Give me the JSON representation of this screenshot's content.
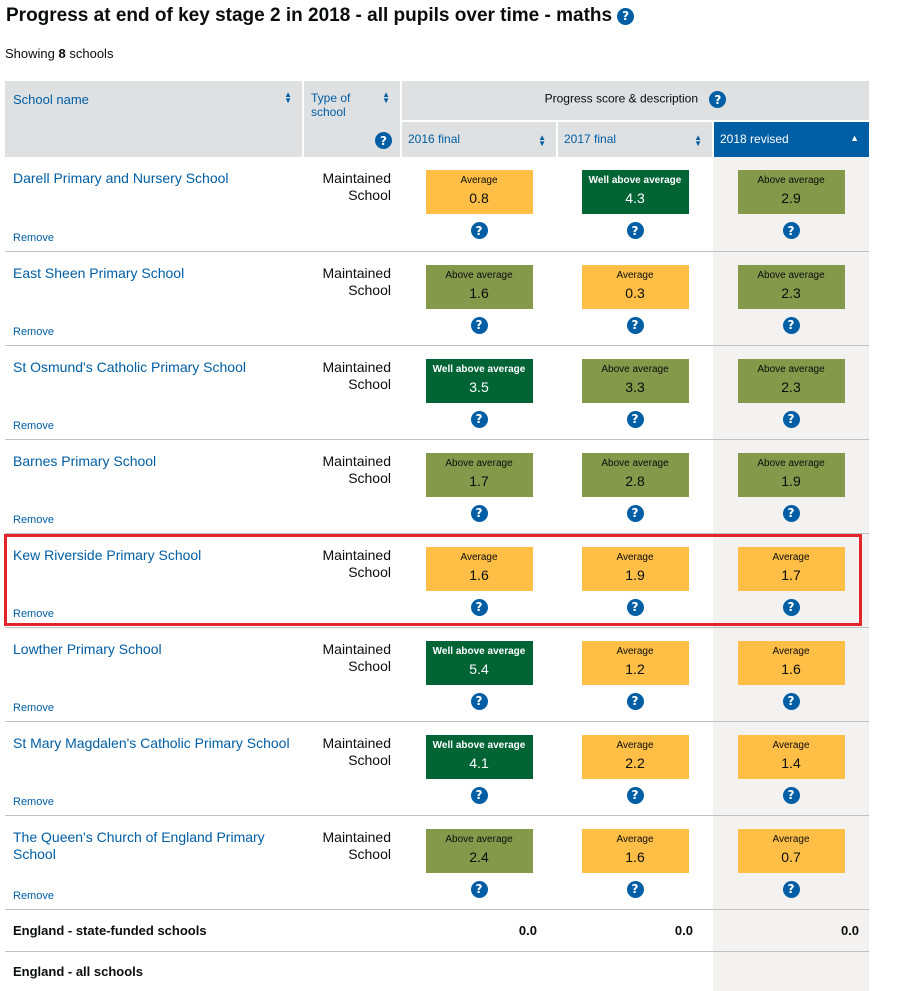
{
  "page": {
    "title": "Progress at end of key stage 2 in 2018 - all pupils over time - maths",
    "showing_prefix": "Showing",
    "showing_count": "8",
    "showing_suffix": "schools"
  },
  "icons": {
    "help": "?"
  },
  "colors": {
    "link": "#005ea5",
    "average": "#ffbf47",
    "above_average": "#85994b",
    "well_above_average": "#006435",
    "highlight": "#e3242b"
  },
  "table": {
    "headers": {
      "school_name": "School name",
      "type_of_school": "Type of school",
      "progress_group": "Progress score & description",
      "years": [
        "2016 final",
        "2017 final",
        "2018 revised"
      ],
      "sort_active_column": "2018 revised"
    },
    "remove_label": "Remove",
    "rows": [
      {
        "name": "Darell Primary and Nursery School",
        "type": "Maintained School",
        "scores": [
          {
            "desc": "Average",
            "value": "0.8",
            "level": "avg"
          },
          {
            "desc": "Well above average",
            "value": "4.3",
            "level": "well"
          },
          {
            "desc": "Above average",
            "value": "2.9",
            "level": "above"
          }
        ]
      },
      {
        "name": "East Sheen Primary School",
        "type": "Maintained School",
        "scores": [
          {
            "desc": "Above average",
            "value": "1.6",
            "level": "above"
          },
          {
            "desc": "Average",
            "value": "0.3",
            "level": "avg"
          },
          {
            "desc": "Above average",
            "value": "2.3",
            "level": "above"
          }
        ]
      },
      {
        "name": "St Osmund's Catholic Primary School",
        "type": "Maintained School",
        "scores": [
          {
            "desc": "Well above average",
            "value": "3.5",
            "level": "well"
          },
          {
            "desc": "Above average",
            "value": "3.3",
            "level": "above"
          },
          {
            "desc": "Above average",
            "value": "2.3",
            "level": "above"
          }
        ]
      },
      {
        "name": "Barnes Primary School",
        "type": "Maintained School",
        "scores": [
          {
            "desc": "Above average",
            "value": "1.7",
            "level": "above"
          },
          {
            "desc": "Above average",
            "value": "2.8",
            "level": "above"
          },
          {
            "desc": "Above average",
            "value": "1.9",
            "level": "above"
          }
        ]
      },
      {
        "name": "Kew Riverside Primary School",
        "type": "Maintained School",
        "highlighted": true,
        "scores": [
          {
            "desc": "Average",
            "value": "1.6",
            "level": "avg"
          },
          {
            "desc": "Average",
            "value": "1.9",
            "level": "avg"
          },
          {
            "desc": "Average",
            "value": "1.7",
            "level": "avg"
          }
        ]
      },
      {
        "name": "Lowther Primary School",
        "type": "Maintained School",
        "scores": [
          {
            "desc": "Well above average",
            "value": "5.4",
            "level": "well"
          },
          {
            "desc": "Average",
            "value": "1.2",
            "level": "avg"
          },
          {
            "desc": "Average",
            "value": "1.6",
            "level": "avg"
          }
        ]
      },
      {
        "name": "St Mary Magdalen's Catholic Primary School",
        "type": "Maintained School",
        "scores": [
          {
            "desc": "Well above average",
            "value": "4.1",
            "level": "well"
          },
          {
            "desc": "Average",
            "value": "2.2",
            "level": "avg"
          },
          {
            "desc": "Average",
            "value": "1.4",
            "level": "avg"
          }
        ]
      },
      {
        "name": "The Queen's Church of England Primary School",
        "type": "Maintained School",
        "scores": [
          {
            "desc": "Above average",
            "value": "2.4",
            "level": "above"
          },
          {
            "desc": "Average",
            "value": "1.6",
            "level": "avg"
          },
          {
            "desc": "Average",
            "value": "0.7",
            "level": "avg"
          }
        ]
      }
    ],
    "totals": [
      {
        "name": "England - state-funded schools",
        "values": [
          "0.0",
          "0.0",
          "0.0"
        ]
      },
      {
        "name": "England - all schools",
        "values": [
          "",
          "",
          ""
        ]
      }
    ]
  }
}
